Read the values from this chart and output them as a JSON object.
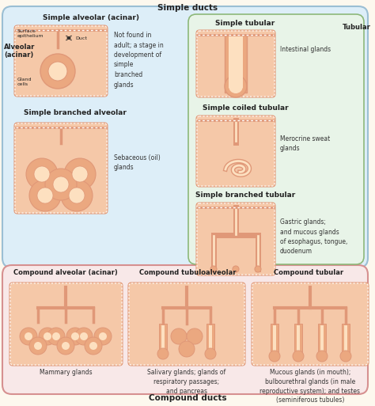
{
  "title_top": "Simple ducts",
  "title_bottom": "Compound ducts",
  "label_alveolar": "Alveolar\n(acinar)",
  "label_tubular": "Tubular",
  "section_titles": {
    "simple_alveolar_acinar": "Simple alveolar (acinar)",
    "simple_branched_alveolar": "Simple branched alveolar",
    "simple_tubular": "Simple tubular",
    "simple_coiled_tubular": "Simple coiled tubular",
    "simple_branched_tubular": "Simple branched tubular",
    "compound_alveolar_acinar": "Compound alveolar (acinar)",
    "compound_tubuloalveolar": "Compound tubuloalveolar",
    "compound_tubular": "Compound tubular"
  },
  "descriptions": {
    "simple_alveolar": "Not found in\nadult; a stage in\ndevelopment of\nsimple\nbranched\nglands",
    "simple_branched_alveolar": "Sebaceous (oil)\nglands",
    "simple_tubular": "Intestinal glands",
    "simple_coiled_tubular": "Merocrine sweat\nglands",
    "simple_branched_tubular": "Gastric glands;\nand mucous glands\nof esophagus, tongue,\nduodenum",
    "compound_alveolar": "Mammary glands",
    "compound_tubuloalveolar": "Salivary glands; glands of\nrespiratory passages;\nand pancreas",
    "compound_tubular": "Mucous glands (in mouth);\nbulbourethral glands (in male\nreproductive system); and testes\n(seminiferous tubules)"
  },
  "labels_simple_alveolar": {
    "surface_epithelium": "Surface\nepithelium",
    "duct": "Duct",
    "gland_cells": "Gland\ncells"
  },
  "colors": {
    "box_border_blue": "#9bbfd4",
    "box_border_green": "#8db87a",
    "box_border_pink": "#d69090",
    "box_fill_blue": "#ddeef8",
    "box_fill_green": "#e8f4e8",
    "box_fill_pink": "#f8e8e8",
    "box_fill_yellow": "#fdf8ee",
    "gland_outer": "#e09878",
    "gland_mid": "#eba880",
    "gland_inner": "#f5c8a8",
    "gland_lumen": "#fde0c0",
    "surface_line": "#cc8866",
    "text_dark": "#222222",
    "text_normal": "#333333"
  }
}
